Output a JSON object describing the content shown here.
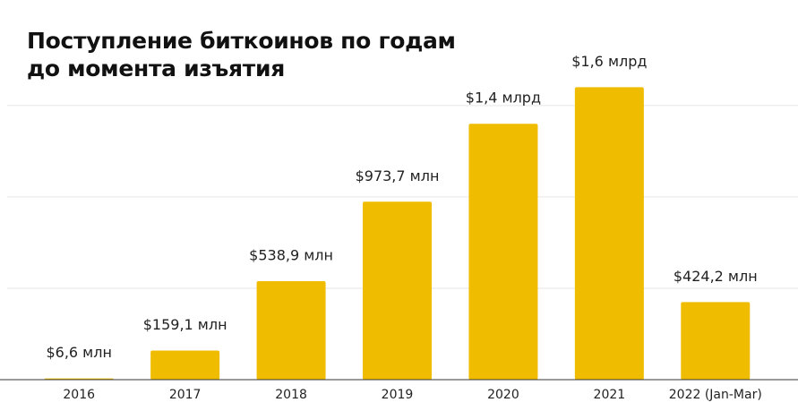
{
  "chart_data": {
    "type": "bar",
    "title": "Поступление биткоинов по годам до момента изъятия",
    "categories": [
      "2016",
      "2017",
      "2018",
      "2019",
      "2020",
      "2021",
      "2022 (Jan-Mar)"
    ],
    "values": [
      6.6,
      159.1,
      538.9,
      973.7,
      1400,
      1600,
      424.2
    ],
    "value_labels": [
      "$6,6 млн",
      "$159,1 млн",
      "$538,9 млн",
      "$973,7 млн",
      "$1,4 млрд",
      "$1,6 млрд",
      "$424,2 млн"
    ],
    "color": "#f0bc00",
    "ylim": [
      0,
      1700
    ],
    "yticks": [
      500,
      1000,
      1500
    ],
    "show_ytick_labels": false,
    "grid": true
  }
}
